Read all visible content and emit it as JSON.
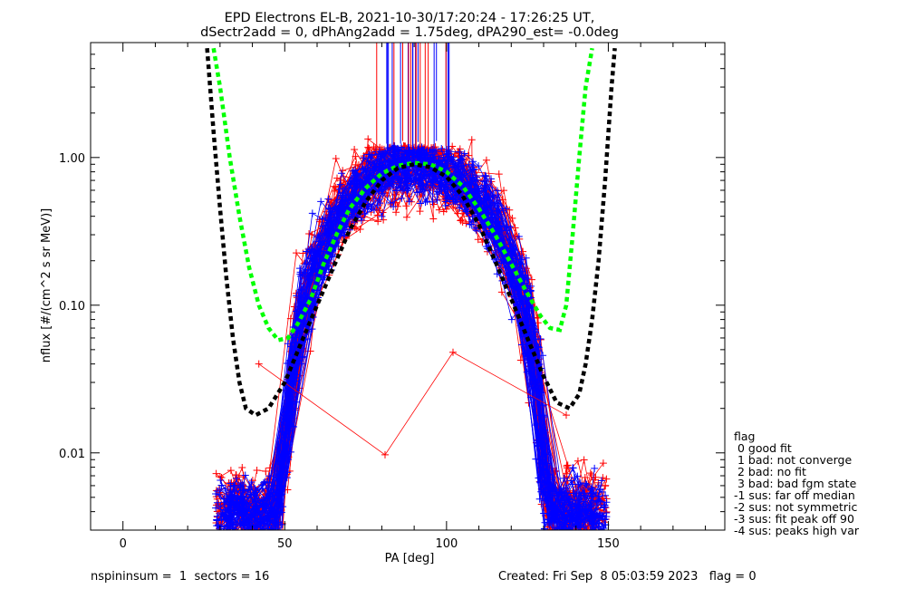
{
  "chart_data": {
    "type": "scatter",
    "title": [
      "EPD Electrons EL-B, 2021-10-30/17:20:24 - 17:26:25 UT,",
      "dSectr2add = 0, dPhAng2add = 1.75deg, dPA290_est=  -0.0deg"
    ],
    "xlabel": "PA [deg]",
    "ylabel": "nflux [#/(cm^2 s sr MeV)]",
    "xlim": [
      -10,
      186
    ],
    "ylim": [
      0.003,
      6.0
    ],
    "yscale": "log",
    "grid": false,
    "x_ticks": [
      0,
      50,
      100,
      150
    ],
    "x_tick_labels": [
      "0",
      "50",
      "100",
      "150"
    ],
    "y_ticks": [
      0.01,
      0.1,
      1.0
    ],
    "y_tick_labels": [
      "0.01",
      "0.10",
      "1.00"
    ],
    "series": [
      {
        "color": "#ff0000",
        "style": "dashed",
        "values": [
          [
            28,
            5.5
          ],
          [
            30,
            3.0
          ],
          [
            33,
            1.0
          ],
          [
            36,
            0.4
          ],
          [
            39,
            0.18
          ],
          [
            42,
            0.1
          ],
          [
            45,
            0.07
          ],
          [
            48,
            0.058
          ],
          [
            51,
            0.06
          ],
          [
            54,
            0.075
          ],
          [
            58,
            0.11
          ],
          [
            62,
            0.19
          ],
          [
            66,
            0.3
          ],
          [
            70,
            0.45
          ],
          [
            75,
            0.62
          ],
          [
            80,
            0.78
          ],
          [
            85,
            0.88
          ],
          [
            90,
            0.92
          ],
          [
            95,
            0.9
          ],
          [
            100,
            0.8
          ],
          [
            105,
            0.64
          ],
          [
            110,
            0.45
          ],
          [
            115,
            0.3
          ],
          [
            120,
            0.19
          ],
          [
            125,
            0.12
          ],
          [
            129,
            0.085
          ],
          [
            132,
            0.07
          ],
          [
            135,
            0.068
          ],
          [
            137,
            0.1
          ],
          [
            139,
            0.3
          ],
          [
            141,
            1.0
          ],
          [
            143,
            3.0
          ],
          [
            145,
            5.5
          ]
        ]
      },
      {
        "color": "#000000",
        "style": "dashed",
        "values": [
          [
            26,
            5.5
          ],
          [
            28,
            1.5
          ],
          [
            30,
            0.45
          ],
          [
            32,
            0.15
          ],
          [
            34,
            0.06
          ],
          [
            36,
            0.03
          ],
          [
            38,
            0.02
          ],
          [
            41,
            0.018
          ],
          [
            45,
            0.02
          ],
          [
            50,
            0.03
          ],
          [
            55,
            0.055
          ],
          [
            60,
            0.1
          ],
          [
            65,
            0.18
          ],
          [
            70,
            0.32
          ],
          [
            75,
            0.5
          ],
          [
            80,
            0.7
          ],
          [
            85,
            0.85
          ],
          [
            90,
            0.9
          ],
          [
            95,
            0.86
          ],
          [
            100,
            0.74
          ],
          [
            105,
            0.55
          ],
          [
            110,
            0.35
          ],
          [
            115,
            0.2
          ],
          [
            120,
            0.11
          ],
          [
            125,
            0.06
          ],
          [
            130,
            0.033
          ],
          [
            134,
            0.022
          ],
          [
            138,
            0.02
          ],
          [
            141,
            0.025
          ],
          [
            143,
            0.04
          ],
          [
            145,
            0.08
          ],
          [
            147,
            0.2
          ],
          [
            149,
            0.7
          ],
          [
            151,
            3.0
          ],
          [
            152,
            5.5
          ]
        ]
      }
    ],
    "annotations": {
      "scatter_points": "dense red and blue '+' data traces connected by lines, peaking near 1.0 at PA 80-100 deg",
      "isolated_red_trace": [
        [
          42,
          0.04
        ],
        [
          81,
          0.0097
        ],
        [
          102,
          0.048
        ],
        [
          137,
          0.018
        ]
      ]
    }
  },
  "legend": {
    "header": "flag",
    "items": [
      " 0 good fit",
      " 1 bad: not converge",
      " 2 bad: no fit",
      " 3 bad: bad fgm state",
      "-1 sus: far off median",
      "-2 sus: not symmetric",
      "-3 sus: fit peak off 90",
      "-4 sus: peaks high var"
    ]
  },
  "footer": {
    "left": "nspininsum =  1  sectors = 16",
    "right": "Created: Fri Sep  8 05:03:59 2023   flag = 0"
  },
  "colors": {
    "red": "#ff0000",
    "blue": "#0000ff",
    "green": "#00ff00",
    "black": "#000000"
  }
}
